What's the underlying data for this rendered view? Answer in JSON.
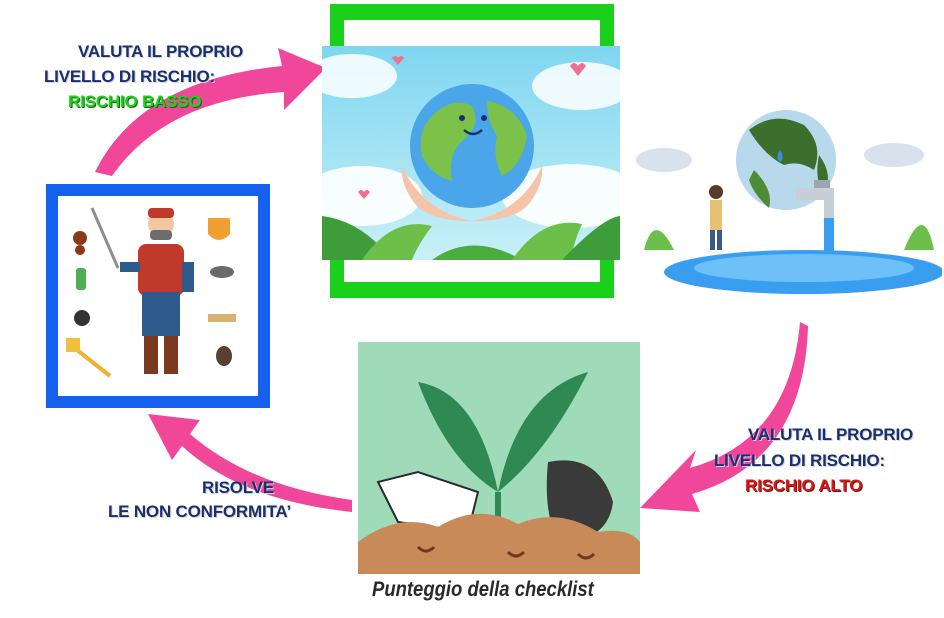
{
  "colors": {
    "arrow": "#f0479a",
    "green_frame": "#1ad01a",
    "blue_frame": "#1660f0",
    "label_dark": "#1b2f6b",
    "low_risk": "#1fd01f",
    "high_risk": "#d21a1a"
  },
  "step_top_left": {
    "line1": "VALUTA IL PROPRIO",
    "line2": "LIVELLO DI RISCHIO:",
    "risk": "RISCHIO BASSO"
  },
  "step_right": {
    "line1": "VALUTA IL PROPRIO",
    "line2": "LIVELLO DI RISCHIO:",
    "risk": "RISCHIO ALTO"
  },
  "step_bottom_left": {
    "line1": "RISOLVE",
    "line2": "LE NON CONFORMITA’"
  },
  "caption": "Punteggio della checklist",
  "images": {
    "top_center": "earth-in-hands-illustration",
    "right": "earth-faucet-water-illustration",
    "left": "pest-control-worker-illustration",
    "bottom_center": "plant-waste-soil-illustration"
  }
}
